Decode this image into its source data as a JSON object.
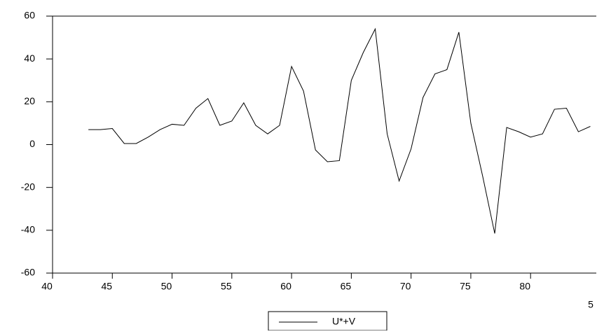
{
  "chart_data": {
    "type": "line",
    "x": [
      43,
      44,
      45,
      46,
      47,
      48,
      49,
      50,
      51,
      52,
      53,
      54,
      55,
      56,
      57,
      58,
      59,
      60,
      61,
      62,
      63,
      64,
      65,
      66,
      67,
      68,
      69,
      70,
      71,
      72,
      73,
      74,
      75,
      76,
      77,
      78,
      79,
      80,
      81,
      82,
      83,
      84,
      85
    ],
    "series": [
      {
        "name": "U*+V",
        "color": "#000000",
        "values": [
          7,
          7,
          7.5,
          0.5,
          0.5,
          3.5,
          7,
          9.5,
          9,
          17,
          21.5,
          9,
          11,
          19.5,
          9,
          5,
          9,
          36.5,
          25,
          -2.5,
          -8,
          -7.5,
          30,
          43,
          54,
          5,
          -17,
          -2,
          22,
          33,
          35,
          52.5,
          10,
          -15,
          -41.5,
          8,
          6,
          3.5,
          5,
          16.5,
          17,
          6,
          8.5
        ]
      }
    ],
    "xlim": [
      40,
      85.5
    ],
    "xticks": [
      40,
      45,
      50,
      55,
      60,
      65,
      70,
      75,
      80
    ],
    "ylim": [
      -60,
      60
    ],
    "yticks": [
      -60,
      -40,
      -20,
      0,
      20,
      40,
      60
    ],
    "annotation": "5"
  }
}
